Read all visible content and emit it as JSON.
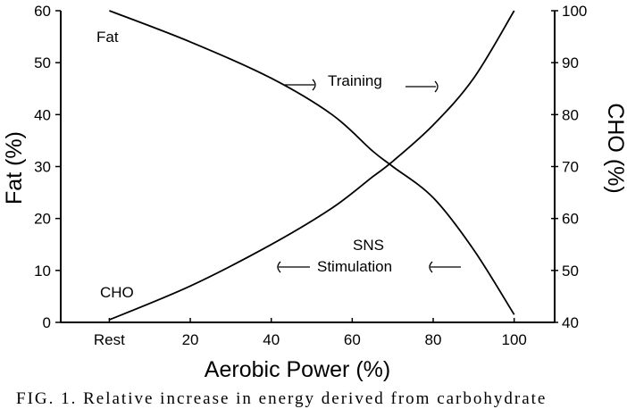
{
  "chart_data": {
    "type": "line",
    "xlabel": "Aerobic Power (%)",
    "ylabel_left": "Fat (%)",
    "ylabel_right": "CHO (%)",
    "xlim": [
      -12,
      110
    ],
    "ylim_left": [
      0,
      60
    ],
    "ylim_right": [
      40,
      100
    ],
    "x_ticks": [
      {
        "value": 0,
        "label": "Rest"
      },
      {
        "value": 20,
        "label": "20"
      },
      {
        "value": 40,
        "label": "40"
      },
      {
        "value": 60,
        "label": "60"
      },
      {
        "value": 80,
        "label": "80"
      },
      {
        "value": 100,
        "label": "100"
      }
    ],
    "y_left_ticks": [
      0,
      10,
      20,
      30,
      40,
      50,
      60
    ],
    "y_right_ticks": [
      40,
      50,
      60,
      70,
      80,
      90,
      100
    ],
    "series": [
      {
        "name": "Fat",
        "axis": "left",
        "x": [
          0,
          20,
          40,
          55,
          65,
          70,
          80,
          90,
          100
        ],
        "values": [
          60,
          54,
          47,
          40,
          33,
          30,
          24,
          14,
          1.5
        ]
      },
      {
        "name": "CHO",
        "axis": "right",
        "x": [
          0,
          20,
          40,
          55,
          65,
          70,
          80,
          90,
          100
        ],
        "values": [
          40.5,
          47,
          55,
          62,
          68,
          71,
          78,
          87,
          100
        ]
      }
    ],
    "annotations": {
      "training": "Training",
      "sns": "SNS",
      "stimulation": "Stimulation"
    },
    "grid": false
  },
  "caption": "FIG. 1. Relative increase in energy derived from carbohydrate"
}
